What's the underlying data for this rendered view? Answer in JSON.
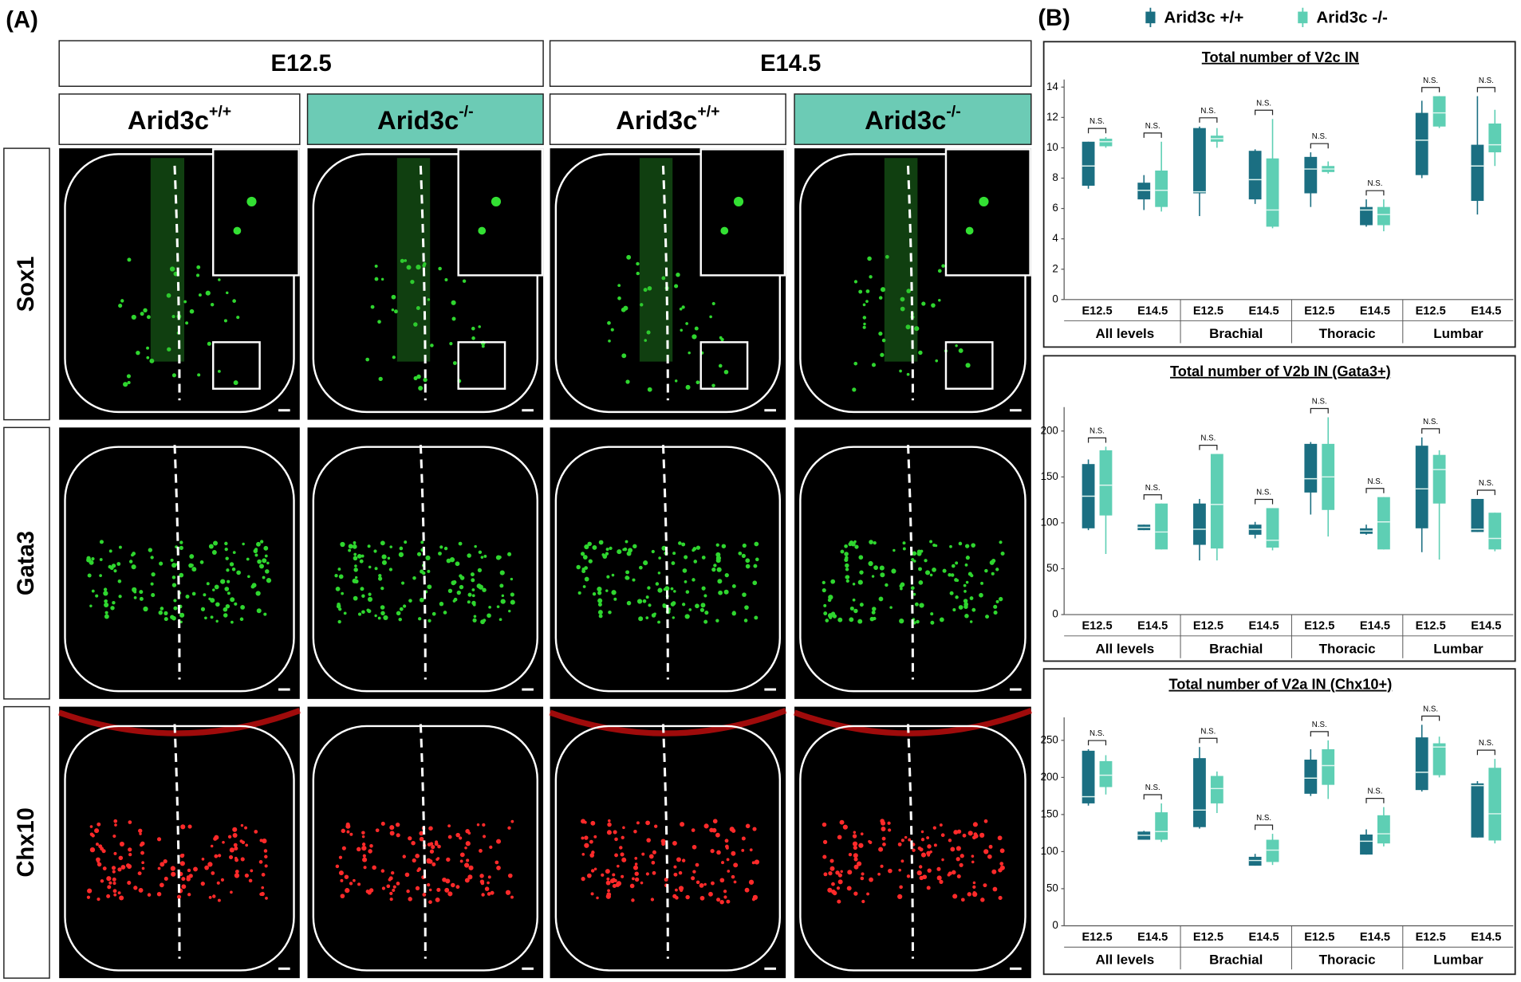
{
  "panel_a": {
    "label": "(A)",
    "stages": [
      "E12.5",
      "E14.5"
    ],
    "genotypes": [
      {
        "text": "Arid3c",
        "sup": "+/+"
      },
      {
        "text": "Arid3c",
        "sup": "-/-"
      },
      {
        "text": "Arid3c",
        "sup": "+/+"
      },
      {
        "text": "Arid3c",
        "sup": "-/-"
      }
    ],
    "markers": [
      "Sox1",
      "Gata3",
      "Chx10"
    ]
  },
  "panel_b": {
    "label": "(B)"
  },
  "chart_data": [
    {
      "type": "box",
      "title": "Total number of V2c IN",
      "categories": [
        "E12.5",
        "E14.5",
        "E12.5",
        "E14.5",
        "E12.5",
        "E14.5",
        "E12.5",
        "E14.5"
      ],
      "groups": [
        "All levels",
        "Brachial",
        "Thoracic",
        "Lumbar"
      ],
      "annotations": [
        "N.S.",
        "N.S.",
        "N.S.",
        "N.S.",
        "N.S.",
        "N.S.",
        "N.S.",
        "N.S."
      ],
      "ylim": [
        0,
        14.5
      ],
      "yticks": [
        0,
        2,
        4,
        6,
        8,
        10,
        12,
        14
      ],
      "series": [
        {
          "name": "Arid3c +/+",
          "color": "#1b6f82",
          "values": [
            {
              "min": 7.3,
              "q1": 7.5,
              "median": 8.8,
              "q3": 10.4,
              "max": 10.4
            },
            {
              "min": 5.9,
              "q1": 6.6,
              "median": 7.2,
              "q3": 7.7,
              "max": 8.2
            },
            {
              "min": 5.5,
              "q1": 7.0,
              "median": 7.1,
              "q3": 11.3,
              "max": 11.4
            },
            {
              "min": 6.3,
              "q1": 6.6,
              "median": 7.9,
              "q3": 9.8,
              "max": 9.9
            },
            {
              "min": 6.1,
              "q1": 7.0,
              "median": 8.6,
              "q3": 9.4,
              "max": 9.7
            },
            {
              "min": 4.8,
              "q1": 4.9,
              "median": 5.9,
              "q3": 6.1,
              "max": 6.6
            },
            {
              "min": 8.0,
              "q1": 8.2,
              "median": 10.5,
              "q3": 12.3,
              "max": 13.1
            },
            {
              "min": 5.6,
              "q1": 6.5,
              "median": 8.8,
              "q3": 10.2,
              "max": 13.4
            }
          ]
        },
        {
          "name": "Arid3c -/-",
          "color": "#5ecfb4",
          "values": [
            {
              "min": 10.0,
              "q1": 10.1,
              "median": 10.4,
              "q3": 10.6,
              "max": 10.7
            },
            {
              "min": 5.8,
              "q1": 6.1,
              "median": 7.2,
              "q3": 8.5,
              "max": 10.4
            },
            {
              "min": 10.0,
              "q1": 10.4,
              "median": 10.6,
              "q3": 10.8,
              "max": 11.3
            },
            {
              "min": 4.7,
              "q1": 4.8,
              "median": 5.9,
              "q3": 9.3,
              "max": 11.9
            },
            {
              "min": 8.3,
              "q1": 8.4,
              "median": 8.6,
              "q3": 8.8,
              "max": 9.1
            },
            {
              "min": 4.5,
              "q1": 4.9,
              "median": 5.6,
              "q3": 6.1,
              "max": 6.6
            },
            {
              "min": 11.3,
              "q1": 11.4,
              "median": 12.3,
              "q3": 13.4,
              "max": 13.4
            },
            {
              "min": 8.8,
              "q1": 9.7,
              "median": 10.2,
              "q3": 11.6,
              "max": 12.5
            }
          ]
        }
      ]
    },
    {
      "type": "box",
      "title": "Total number of V2b IN (Gata3+)",
      "categories": [
        "E12.5",
        "E14.5",
        "E12.5",
        "E14.5",
        "E12.5",
        "E14.5",
        "E12.5",
        "E14.5"
      ],
      "groups": [
        "All levels",
        "Brachial",
        "Thoracic",
        "Lumbar"
      ],
      "annotations": [
        "N.S.",
        "N.S.",
        "N.S.",
        "N.S.",
        "N.S.",
        "N.S.",
        "N.S.",
        "N.S."
      ],
      "ylim": [
        0,
        226
      ],
      "yticks": [
        0,
        50,
        100,
        150,
        200
      ],
      "series": [
        {
          "name": "Arid3c +/+",
          "color": "#1b6f82",
          "values": [
            {
              "min": 92,
              "q1": 94,
              "median": 129,
              "q3": 164,
              "max": 169
            },
            {
              "min": 92,
              "q1": 92,
              "median": 95,
              "q3": 98,
              "max": 98
            },
            {
              "min": 59,
              "q1": 76,
              "median": 93,
              "q3": 121,
              "max": 126
            },
            {
              "min": 83,
              "q1": 87,
              "median": 93,
              "q3": 98,
              "max": 101
            },
            {
              "min": 109,
              "q1": 133,
              "median": 148,
              "q3": 186,
              "max": 188
            },
            {
              "min": 87,
              "q1": 88,
              "median": 91,
              "q3": 94,
              "max": 98
            },
            {
              "min": 68,
              "q1": 94,
              "median": 137,
              "q3": 184,
              "max": 193
            },
            {
              "min": 90,
              "q1": 90,
              "median": 93,
              "q3": 126,
              "max": 126
            }
          ]
        },
        {
          "name": "Arid3c -/-",
          "color": "#5ecfb4",
          "values": [
            {
              "min": 66,
              "q1": 108,
              "median": 141,
              "q3": 179,
              "max": 183
            },
            {
              "min": 71,
              "q1": 71,
              "median": 90,
              "q3": 121,
              "max": 121
            },
            {
              "min": 59,
              "q1": 72,
              "median": 120,
              "q3": 175,
              "max": 175
            },
            {
              "min": 70,
              "q1": 73,
              "median": 81,
              "q3": 116,
              "max": 116
            },
            {
              "min": 85,
              "q1": 114,
              "median": 150,
              "q3": 186,
              "max": 215
            },
            {
              "min": 71,
              "q1": 71,
              "median": 101,
              "q3": 128,
              "max": 128
            },
            {
              "min": 60,
              "q1": 121,
              "median": 158,
              "q3": 174,
              "max": 179
            },
            {
              "min": 69,
              "q1": 71,
              "median": 83,
              "q3": 111,
              "max": 111
            }
          ]
        }
      ]
    },
    {
      "type": "box",
      "title": "Total number of V2a IN (Chx10+)",
      "categories": [
        "E12.5",
        "E14.5",
        "E12.5",
        "E14.5",
        "E12.5",
        "E14.5",
        "E12.5",
        "E14.5"
      ],
      "groups": [
        "All levels",
        "Brachial",
        "Thoracic",
        "Lumbar"
      ],
      "annotations": [
        "N.S.",
        "N.S.",
        "N.S.",
        "N.S.",
        "N.S.",
        "N.S.",
        "N.S.",
        "N.S."
      ],
      "ylim": [
        0,
        281
      ],
      "yticks": [
        0,
        50,
        100,
        150,
        200,
        250
      ],
      "series": [
        {
          "name": "Arid3c +/+",
          "color": "#1b6f82",
          "values": [
            {
              "min": 162,
              "q1": 165,
              "median": 174,
              "q3": 236,
              "max": 238
            },
            {
              "min": 116,
              "q1": 116,
              "median": 122,
              "q3": 127,
              "max": 128
            },
            {
              "min": 131,
              "q1": 133,
              "median": 156,
              "q3": 226,
              "max": 241
            },
            {
              "min": 81,
              "q1": 81,
              "median": 88,
              "q3": 93,
              "max": 97
            },
            {
              "min": 175,
              "q1": 178,
              "median": 199,
              "q3": 224,
              "max": 238
            },
            {
              "min": 96,
              "q1": 96,
              "median": 114,
              "q3": 123,
              "max": 130
            },
            {
              "min": 181,
              "q1": 183,
              "median": 207,
              "q3": 254,
              "max": 271
            },
            {
              "min": 119,
              "q1": 119,
              "median": 189,
              "q3": 192,
              "max": 195
            }
          ]
        },
        {
          "name": "Arid3c -/-",
          "color": "#5ecfb4",
          "values": [
            {
              "min": 177,
              "q1": 187,
              "median": 203,
              "q3": 222,
              "max": 230
            },
            {
              "min": 113,
              "q1": 116,
              "median": 127,
              "q3": 153,
              "max": 165
            },
            {
              "min": 152,
              "q1": 165,
              "median": 185,
              "q3": 202,
              "max": 208
            },
            {
              "min": 82,
              "q1": 86,
              "median": 102,
              "q3": 116,
              "max": 124
            },
            {
              "min": 171,
              "q1": 190,
              "median": 216,
              "q3": 238,
              "max": 250
            },
            {
              "min": 107,
              "q1": 111,
              "median": 124,
              "q3": 149,
              "max": 160
            },
            {
              "min": 200,
              "q1": 203,
              "median": 241,
              "q3": 246,
              "max": 255
            },
            {
              "min": 111,
              "q1": 115,
              "median": 151,
              "q3": 213,
              "max": 225
            }
          ]
        }
      ]
    }
  ]
}
